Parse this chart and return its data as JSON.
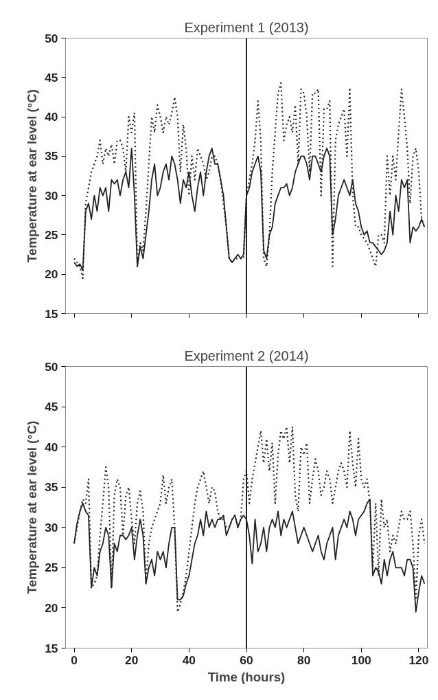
{
  "chart_data": [
    {
      "type": "line",
      "title": "Experiment 1 (2013)",
      "ylabel": "Temperature at ear level (°C)",
      "xlim": [
        -3,
        123
      ],
      "xticks": [
        0,
        20,
        40,
        60,
        80,
        100,
        120
      ],
      "ylim": [
        15,
        50
      ],
      "yticks": [
        15,
        20,
        25,
        30,
        35,
        40,
        45,
        50
      ],
      "tick_labels": "y",
      "grid": false,
      "x": [
        0,
        1,
        2,
        3,
        4,
        5,
        6,
        7,
        8,
        9,
        10,
        11,
        12,
        13,
        14,
        15,
        16,
        17,
        18,
        19,
        20,
        21,
        22,
        23,
        24,
        25,
        26,
        27,
        28,
        29,
        30,
        31,
        32,
        33,
        34,
        35,
        36,
        37,
        38,
        39,
        40,
        41,
        42,
        43,
        44,
        45,
        46,
        47,
        48,
        49,
        50,
        51,
        52,
        53,
        54,
        55,
        56,
        57,
        58,
        59,
        60,
        61,
        62,
        63,
        64,
        65,
        66,
        67,
        68,
        69,
        70,
        71,
        72,
        73,
        74,
        75,
        76,
        77,
        78,
        79,
        80,
        81,
        82,
        83,
        84,
        85,
        86,
        87,
        88,
        89,
        90,
        91,
        92,
        93,
        94,
        95,
        96,
        97,
        98,
        99,
        100,
        101,
        102,
        103,
        104,
        105,
        106,
        107,
        108,
        109,
        110,
        111,
        112,
        113,
        114,
        115,
        116,
        117,
        118,
        119,
        120,
        121,
        122
      ],
      "ref_lines": [
        {
          "axis": "x",
          "value": 60,
          "color": "#222222",
          "line_style": "solid"
        }
      ],
      "series": [
        {
          "color": "#222222",
          "line_style": "solid",
          "values": [
            21.5,
            21,
            21.3,
            20.5,
            28,
            29,
            27,
            30,
            28,
            31,
            30,
            31,
            28,
            32,
            31.5,
            32,
            30,
            32,
            33,
            31,
            36,
            30,
            21,
            23.5,
            22,
            25,
            28,
            32,
            34,
            30,
            31,
            33,
            34,
            32,
            35,
            34,
            32,
            29,
            32,
            31,
            33,
            30,
            28,
            31,
            33,
            30,
            33,
            35,
            36,
            34,
            34,
            32,
            30,
            26,
            22,
            21.5,
            22,
            22.5,
            22,
            22.5,
            30,
            31,
            33,
            34,
            35,
            33,
            23,
            22,
            25,
            26,
            29,
            30,
            31,
            31,
            31.5,
            30,
            31,
            33,
            34,
            35,
            35,
            34,
            32,
            35,
            35,
            34,
            33,
            35,
            36,
            35,
            25,
            27,
            30,
            31,
            32,
            31,
            30,
            32,
            29,
            28,
            26,
            25,
            25.5,
            24,
            24,
            23.5,
            23,
            22.5,
            23,
            24,
            28,
            25,
            30,
            28,
            32,
            31,
            32,
            24,
            26,
            25.5,
            26,
            27,
            26
          ]
        },
        {
          "color": "#222222",
          "line_style": "dotted",
          "values": [
            22,
            21.5,
            21,
            19.5,
            29,
            31,
            33,
            34,
            35,
            37,
            34,
            36,
            35,
            36.5,
            34,
            37,
            37,
            36,
            33,
            40,
            38,
            40.5,
            21,
            24,
            23,
            28,
            34,
            40,
            38,
            41.5,
            40,
            38,
            40,
            39,
            40.5,
            42.5,
            40,
            33,
            39,
            36,
            30,
            35,
            32,
            36,
            35,
            34,
            32,
            33,
            35,
            35,
            34,
            32,
            29,
            26,
            22,
            21.5,
            22,
            22,
            22,
            22,
            30,
            32,
            34,
            37,
            42,
            37,
            22,
            21,
            25,
            33,
            38,
            43,
            44.3,
            37,
            39,
            40,
            38,
            41.5,
            34,
            43.5,
            43,
            40,
            33,
            43,
            43,
            43.5,
            30,
            41,
            41,
            42,
            21,
            37,
            39,
            40,
            41,
            35,
            43.7,
            30,
            26,
            26,
            25,
            24.5,
            24,
            23,
            22,
            21,
            25,
            25,
            24,
            35,
            30,
            35,
            32,
            38,
            43.5,
            40,
            36,
            29,
            35,
            36,
            33,
            27,
            26
          ]
        }
      ]
    },
    {
      "type": "line",
      "title": "Experiment 2 (2014)",
      "xlabel": "Time (hours)",
      "ylabel": "Temperature at ear level (°C)",
      "xlim": [
        -3,
        123
      ],
      "xticks": [
        0,
        20,
        40,
        60,
        80,
        100,
        120
      ],
      "ylim": [
        15,
        50
      ],
      "yticks": [
        15,
        20,
        25,
        30,
        35,
        40,
        45,
        50
      ],
      "grid": false,
      "x": [
        0,
        1,
        2,
        3,
        4,
        5,
        6,
        7,
        8,
        9,
        10,
        11,
        12,
        13,
        14,
        15,
        16,
        17,
        18,
        19,
        20,
        21,
        22,
        23,
        24,
        25,
        26,
        27,
        28,
        29,
        30,
        31,
        32,
        33,
        34,
        35,
        36,
        37,
        38,
        39,
        40,
        41,
        42,
        43,
        44,
        45,
        46,
        47,
        48,
        49,
        50,
        51,
        52,
        53,
        54,
        55,
        56,
        57,
        58,
        59,
        60,
        61,
        62,
        63,
        64,
        65,
        66,
        67,
        68,
        69,
        70,
        71,
        72,
        73,
        74,
        75,
        76,
        77,
        78,
        79,
        80,
        81,
        82,
        83,
        84,
        85,
        86,
        87,
        88,
        89,
        90,
        91,
        92,
        93,
        94,
        95,
        96,
        97,
        98,
        99,
        100,
        101,
        102,
        103,
        104,
        105,
        106,
        107,
        108,
        109,
        110,
        111,
        112,
        113,
        114,
        115,
        116,
        117,
        118,
        119,
        120,
        121,
        122
      ],
      "ref_lines": [
        {
          "axis": "x",
          "value": 60,
          "color": "#222222",
          "line_style": "solid"
        }
      ],
      "series": [
        {
          "color": "#222222",
          "line_style": "solid",
          "values": [
            28,
            30.5,
            32,
            33,
            32,
            31.5,
            22.5,
            25,
            24,
            27,
            28,
            30,
            29,
            22.5,
            28,
            27,
            29,
            29,
            28.5,
            29,
            30,
            26,
            29,
            31,
            29,
            23,
            25,
            26,
            24,
            27,
            26,
            27,
            25,
            28,
            30,
            30,
            21,
            21,
            21.5,
            23,
            24,
            26,
            28,
            29,
            31,
            29,
            32,
            30,
            31,
            30,
            31,
            31,
            31.5,
            29,
            30,
            31,
            31.5,
            30,
            31,
            31.5,
            31,
            29,
            25.5,
            31,
            27,
            28,
            30,
            27,
            30,
            31,
            30,
            32,
            29,
            31,
            30,
            31,
            32,
            30,
            28,
            29,
            30,
            29,
            28,
            27,
            28,
            29,
            27,
            26,
            28,
            29,
            30,
            26,
            29,
            30,
            31,
            30,
            32,
            31,
            29,
            31,
            31.5,
            32,
            33,
            33.5,
            24,
            25,
            24.5,
            23,
            26,
            24,
            26,
            27,
            25,
            25,
            25,
            24,
            26,
            26,
            25,
            19.5,
            22,
            24,
            23
          ]
        },
        {
          "color": "#222222",
          "line_style": "dotted",
          "values": [
            28,
            30,
            32,
            33.5,
            33,
            36,
            22.5,
            23,
            24,
            29,
            33,
            37.5,
            35,
            22.5,
            34,
            36,
            35,
            29,
            34,
            35,
            31,
            28,
            33,
            34.5,
            32,
            23,
            28,
            30,
            31,
            32,
            33,
            36.5,
            33,
            35,
            36,
            30,
            19.5,
            20.5,
            22,
            24,
            27,
            30,
            33,
            35,
            36,
            37,
            35,
            33,
            35,
            34.5,
            32,
            31,
            31,
            30,
            30,
            31,
            31.5,
            30,
            31,
            36,
            37,
            33,
            36,
            38,
            40,
            42,
            38,
            41,
            37,
            40.5,
            33,
            39,
            42,
            41,
            42.5,
            38,
            42.5,
            34,
            32,
            40,
            39,
            40.5,
            33,
            36,
            38.5,
            37,
            34,
            35,
            37,
            36,
            33,
            35,
            37,
            38,
            37,
            35,
            42,
            38,
            35,
            41,
            36,
            35,
            36,
            33,
            25,
            33,
            24,
            33.5,
            30,
            31,
            27,
            29,
            28,
            30,
            32,
            31,
            31,
            32,
            28,
            21,
            29,
            31,
            28
          ]
        }
      ]
    }
  ]
}
